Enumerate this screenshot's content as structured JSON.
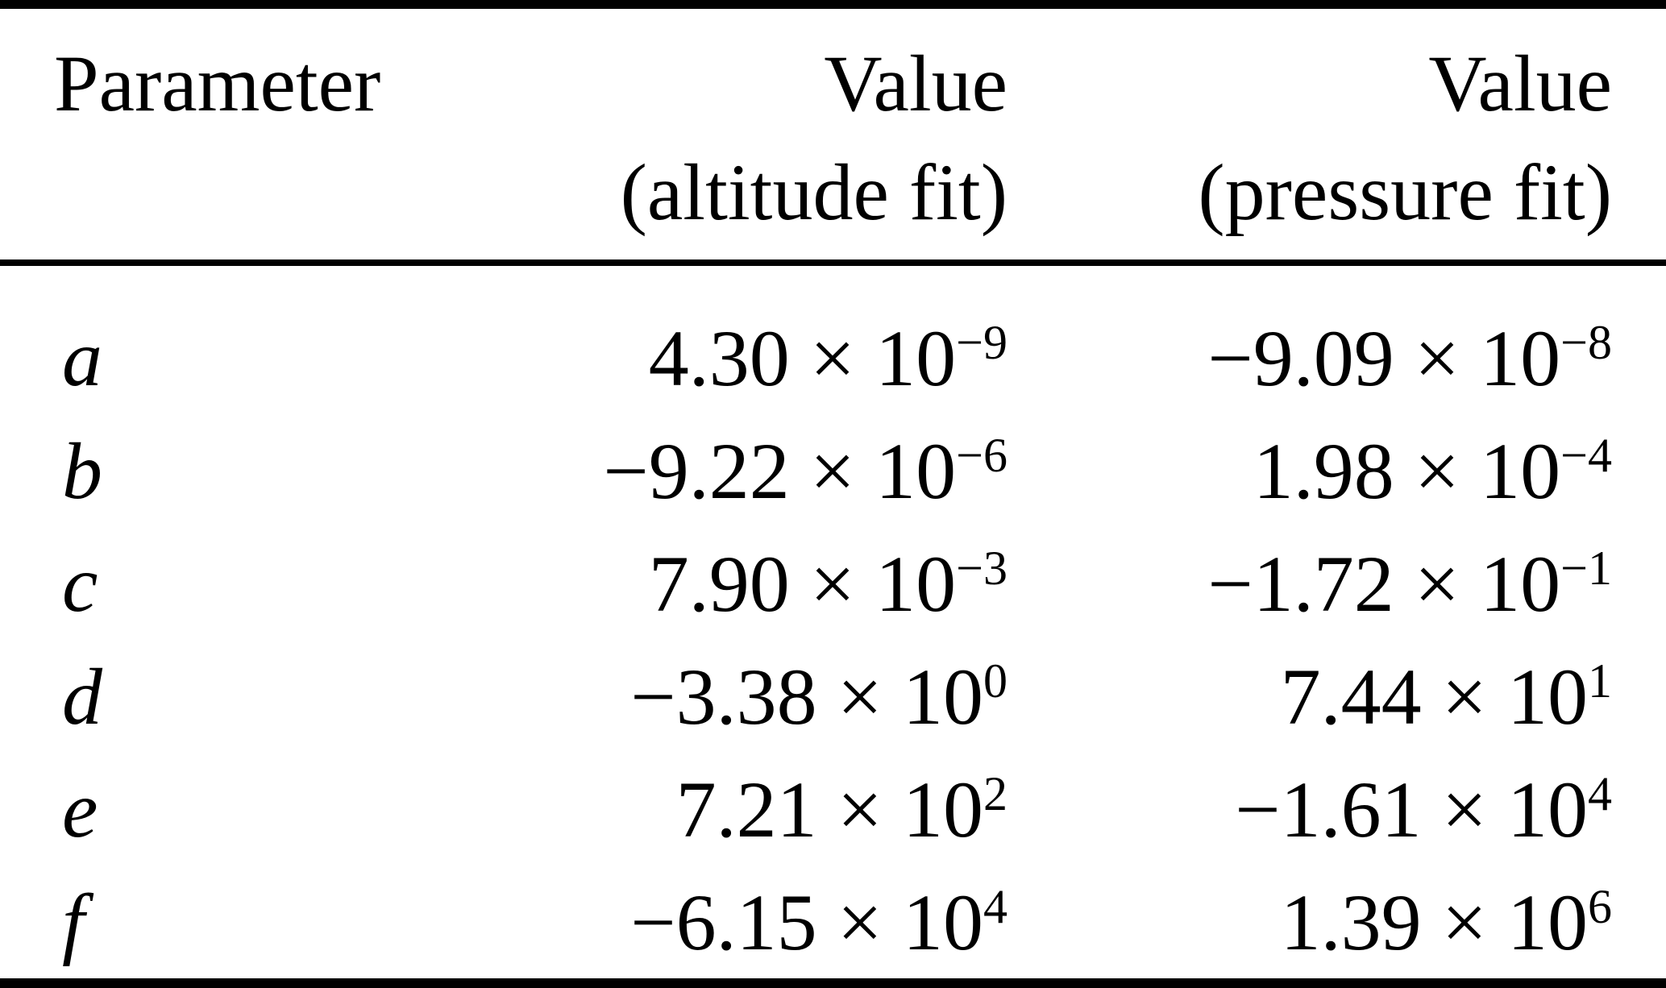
{
  "table": {
    "header": {
      "parameter": "Parameter",
      "altitude_line1": "Value",
      "altitude_line2": "(altitude fit)",
      "pressure_line1": "Value",
      "pressure_line2": "(pressure fit)"
    },
    "rows": [
      {
        "param": "a",
        "altitude": {
          "base": "4.30 × 10",
          "exp": "−9"
        },
        "pressure": {
          "base": "−9.09 × 10",
          "exp": "−8"
        }
      },
      {
        "param": "b",
        "altitude": {
          "base": "−9.22 × 10",
          "exp": "−6"
        },
        "pressure": {
          "base": "1.98 × 10",
          "exp": "−4"
        }
      },
      {
        "param": "c",
        "altitude": {
          "base": "7.90 × 10",
          "exp": "−3"
        },
        "pressure": {
          "base": "−1.72 × 10",
          "exp": "−1"
        }
      },
      {
        "param": "d",
        "altitude": {
          "base": "−3.38 × 10",
          "exp": "0"
        },
        "pressure": {
          "base": "7.44 × 10",
          "exp": "1"
        }
      },
      {
        "param": "e",
        "altitude": {
          "base": "7.21 × 10",
          "exp": "2"
        },
        "pressure": {
          "base": "−1.61 × 10",
          "exp": "4"
        }
      },
      {
        "param": "f",
        "altitude": {
          "base": "−6.15 × 10",
          "exp": "4"
        },
        "pressure": {
          "base": "1.39 × 10",
          "exp": "6"
        }
      }
    ]
  },
  "chart_data": {
    "type": "table",
    "columns": [
      "Parameter",
      "Value (altitude fit)",
      "Value (pressure fit)"
    ],
    "rows": [
      [
        "a",
        "4.30 × 10⁻⁹",
        "−9.09 × 10⁻⁸"
      ],
      [
        "b",
        "−9.22 × 10⁻⁶",
        "1.98 × 10⁻⁴"
      ],
      [
        "c",
        "7.90 × 10⁻³",
        "−1.72 × 10⁻¹"
      ],
      [
        "d",
        "−3.38 × 10⁰",
        "7.44 × 10¹"
      ],
      [
        "e",
        "7.21 × 10²",
        "−1.61 × 10⁴"
      ],
      [
        "f",
        "−6.15 × 10⁴",
        "1.39 × 10⁶"
      ]
    ]
  },
  "colors": {
    "text": "#000000",
    "background": "#ffffff",
    "rule": "#000000"
  }
}
